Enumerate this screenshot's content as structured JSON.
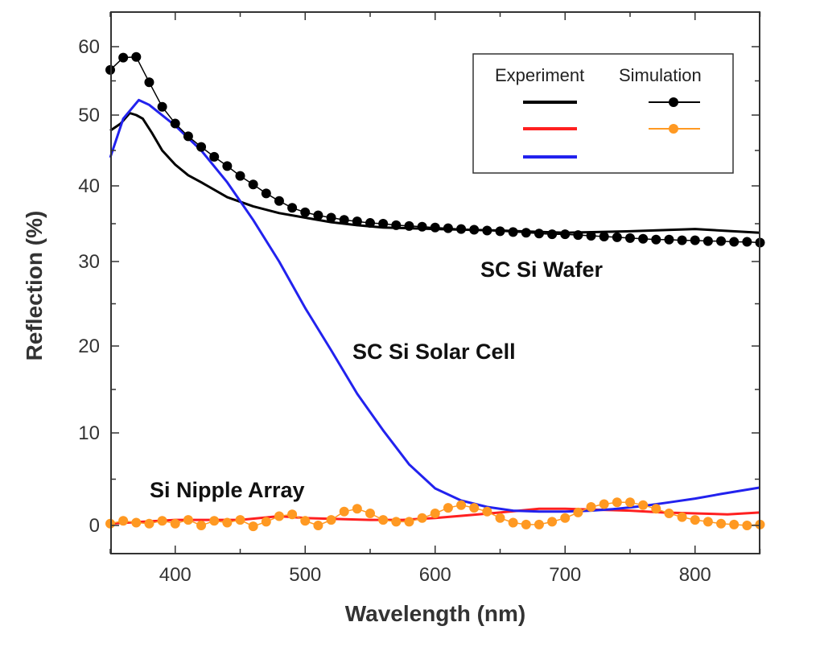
{
  "chart_data": {
    "type": "line",
    "title": "",
    "xlabel": "Wavelength (nm)",
    "ylabel": "Reflection (%)",
    "xlim": [
      350,
      850
    ],
    "ylim": [
      -3,
      63
    ],
    "xticks": [
      400,
      500,
      600,
      700,
      800
    ],
    "yticks": [
      0,
      10,
      20,
      30,
      40,
      50,
      60
    ],
    "grid": false,
    "legend": {
      "placement": "top-right",
      "headers": [
        "Experiment",
        "Simulation"
      ]
    },
    "annotations": [
      "SC Si Wafer",
      "SC Si Solar Cell",
      "Si Nipple Array"
    ],
    "series": [
      {
        "group": "Experiment",
        "curve": "SC Si Wafer",
        "color": "#000000",
        "marker": "none",
        "x": [
          350,
          358,
          365,
          370,
          375,
          382,
          390,
          400,
          410,
          420,
          440,
          460,
          480,
          500,
          520,
          540,
          560,
          600,
          650,
          700,
          750,
          800,
          850
        ],
        "y": [
          47.8,
          48.8,
          50.3,
          50.0,
          49.5,
          47.5,
          45.0,
          43.0,
          41.5,
          40.5,
          38.5,
          37.3,
          36.4,
          35.8,
          35.2,
          34.8,
          34.5,
          34.3,
          34.1,
          33.8,
          34.0,
          34.3,
          33.8
        ]
      },
      {
        "group": "Experiment",
        "curve": "Si Nipple Array",
        "color": "#ff2020",
        "marker": "none",
        "x": [
          350,
          375,
          400,
          425,
          450,
          480,
          500,
          525,
          550,
          575,
          600,
          625,
          650,
          680,
          700,
          725,
          750,
          775,
          800,
          825,
          850
        ],
        "y": [
          0.2,
          0.4,
          0.6,
          0.6,
          0.6,
          1.0,
          0.8,
          0.7,
          0.6,
          0.6,
          0.8,
          1.1,
          1.4,
          1.8,
          1.8,
          1.7,
          1.6,
          1.4,
          1.3,
          1.2,
          1.4
        ]
      },
      {
        "group": "Experiment",
        "curve": "SC Si Solar Cell",
        "color": "#2222ee",
        "marker": "none",
        "x": [
          350,
          360,
          372,
          380,
          400,
          420,
          440,
          460,
          480,
          500,
          520,
          540,
          560,
          580,
          600,
          620,
          640,
          660,
          680,
          700,
          720,
          740,
          760,
          780,
          800,
          820,
          850
        ],
        "y": [
          44.0,
          49.5,
          52.2,
          51.5,
          48.5,
          45.0,
          40.5,
          35.5,
          30.0,
          24.5,
          19.5,
          14.5,
          10.3,
          6.6,
          4.0,
          2.7,
          2.0,
          1.6,
          1.5,
          1.5,
          1.6,
          1.8,
          2.1,
          2.5,
          2.9,
          3.4,
          4.1
        ]
      },
      {
        "group": "Simulation",
        "curve": "SC Si Wafer",
        "color": "#000000",
        "marker": "circle",
        "x": [
          350,
          360,
          370,
          380,
          390,
          400,
          410,
          420,
          430,
          440,
          450,
          460,
          470,
          480,
          490,
          500,
          510,
          520,
          530,
          540,
          550,
          560,
          570,
          580,
          590,
          600,
          610,
          620,
          630,
          640,
          650,
          660,
          670,
          680,
          690,
          700,
          710,
          720,
          730,
          740,
          750,
          760,
          770,
          780,
          790,
          800,
          810,
          820,
          830,
          840,
          850
        ],
        "y": [
          56.6,
          58.4,
          58.5,
          54.8,
          51.2,
          48.8,
          47.0,
          45.5,
          44.1,
          42.8,
          41.4,
          40.2,
          39.0,
          38.0,
          37.1,
          36.5,
          36.1,
          35.8,
          35.5,
          35.3,
          35.1,
          35.0,
          34.8,
          34.7,
          34.6,
          34.5,
          34.4,
          34.3,
          34.2,
          34.1,
          34.0,
          33.9,
          33.8,
          33.7,
          33.6,
          33.6,
          33.5,
          33.4,
          33.3,
          33.2,
          33.1,
          33.0,
          32.9,
          32.9,
          32.8,
          32.8,
          32.7,
          32.7,
          32.6,
          32.6,
          32.5
        ]
      },
      {
        "group": "Simulation",
        "curve": "Si Nipple Array",
        "color": "#ff9922",
        "marker": "circle",
        "x": [
          350,
          360,
          370,
          380,
          390,
          400,
          410,
          420,
          430,
          440,
          450,
          460,
          470,
          480,
          490,
          500,
          510,
          520,
          530,
          540,
          550,
          560,
          570,
          580,
          590,
          600,
          610,
          620,
          630,
          640,
          650,
          660,
          670,
          680,
          690,
          700,
          710,
          720,
          730,
          740,
          750,
          760,
          770,
          780,
          790,
          800,
          810,
          820,
          830,
          840,
          850
        ],
        "y": [
          0.2,
          0.5,
          0.3,
          0.2,
          0.5,
          0.2,
          0.6,
          0.0,
          0.5,
          0.3,
          0.6,
          -0.1,
          0.4,
          1.0,
          1.2,
          0.5,
          0.0,
          0.6,
          1.5,
          1.8,
          1.3,
          0.6,
          0.4,
          0.4,
          0.8,
          1.3,
          1.9,
          2.2,
          1.9,
          1.5,
          0.8,
          0.3,
          0.1,
          0.1,
          0.4,
          0.8,
          1.4,
          2.0,
          2.3,
          2.5,
          2.5,
          2.2,
          1.8,
          1.3,
          0.9,
          0.6,
          0.4,
          0.2,
          0.1,
          0.0,
          0.1
        ]
      }
    ]
  }
}
